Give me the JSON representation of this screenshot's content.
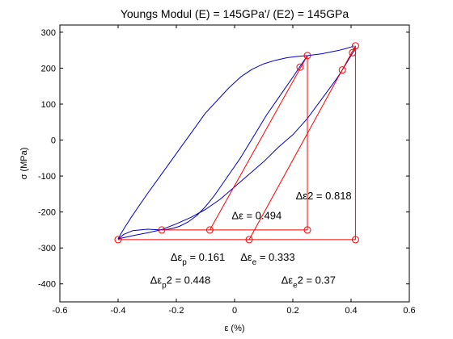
{
  "chart_data": {
    "type": "line",
    "title": "Youngs Modul (E) = 145GPa'/ (E2) = 145GPa",
    "xlabel": "ε (%)",
    "ylabel": "σ (MPa)",
    "xlim": [
      -0.6,
      0.6
    ],
    "ylim": [
      -450,
      320
    ],
    "xticks": [
      -0.6,
      -0.4,
      -0.2,
      0,
      0.2,
      0.4,
      0.6
    ],
    "xtick_labels": [
      "-0.6",
      "-0.4",
      "-0.2",
      "0",
      "0.2",
      "0.4",
      "0.6"
    ],
    "yticks": [
      -400,
      -300,
      -200,
      -100,
      0,
      100,
      200,
      300
    ],
    "ytick_labels": [
      "-400",
      "-300",
      "-200",
      "-100",
      "0",
      "100",
      "200",
      "300"
    ],
    "grid": false,
    "colors": {
      "data": "#0000c8",
      "construction": "#ff0000",
      "axes": "#000000"
    },
    "series": [
      {
        "style": "curve",
        "color": "#0000c8",
        "points": [
          [
            -0.4,
            -275
          ],
          [
            -0.39,
            -260
          ],
          [
            -0.375,
            -240
          ],
          [
            -0.355,
            -215
          ],
          [
            -0.33,
            -185
          ],
          [
            -0.3,
            -150
          ],
          [
            -0.26,
            -105
          ],
          [
            -0.22,
            -60
          ],
          [
            -0.18,
            -15
          ],
          [
            -0.14,
            30
          ],
          [
            -0.1,
            75
          ],
          [
            -0.06,
            110
          ],
          [
            -0.02,
            145
          ],
          [
            0.02,
            175
          ],
          [
            0.06,
            197
          ],
          [
            0.1,
            212
          ],
          [
            0.14,
            222
          ],
          [
            0.18,
            229
          ],
          [
            0.22,
            233
          ],
          [
            0.25,
            235
          ],
          [
            0.27,
            237
          ],
          [
            0.3,
            240
          ],
          [
            0.33,
            245
          ],
          [
            0.36,
            250
          ],
          [
            0.38,
            254
          ],
          [
            0.4,
            259
          ],
          [
            0.41,
            262
          ]
        ]
      },
      {
        "style": "curve",
        "color": "#0000c8",
        "points": [
          [
            0.25,
            235
          ],
          [
            0.225,
            205
          ],
          [
            0.2,
            175
          ],
          [
            0.17,
            140
          ],
          [
            0.14,
            105
          ],
          [
            0.11,
            70
          ],
          [
            0.08,
            30
          ],
          [
            0.05,
            -10
          ],
          [
            0.02,
            -50
          ],
          [
            -0.01,
            -85
          ],
          [
            -0.04,
            -120
          ],
          [
            -0.07,
            -155
          ],
          [
            -0.1,
            -185
          ],
          [
            -0.13,
            -210
          ],
          [
            -0.16,
            -228
          ],
          [
            -0.19,
            -240
          ],
          [
            -0.215,
            -246
          ],
          [
            -0.235,
            -249
          ],
          [
            -0.25,
            -250
          ]
        ]
      },
      {
        "style": "curve",
        "color": "#0000c8",
        "points": [
          [
            -0.25,
            -250
          ],
          [
            -0.3,
            -248
          ],
          [
            -0.35,
            -252
          ],
          [
            -0.38,
            -262
          ],
          [
            -0.4,
            -275
          ],
          [
            -0.35,
            -266
          ],
          [
            -0.3,
            -258
          ],
          [
            -0.25,
            -249
          ],
          [
            -0.2,
            -233
          ],
          [
            -0.15,
            -215
          ],
          [
            -0.1,
            -193
          ],
          [
            -0.05,
            -165
          ],
          [
            0,
            -130
          ],
          [
            0.05,
            -95
          ],
          [
            0.1,
            -60
          ],
          [
            0.15,
            -20
          ],
          [
            0.2,
            15
          ],
          [
            0.25,
            60
          ],
          [
            0.3,
            115
          ],
          [
            0.35,
            170
          ],
          [
            0.37,
            195
          ],
          [
            0.39,
            222
          ],
          [
            0.41,
            248
          ],
          [
            0.415,
            259
          ]
        ]
      },
      {
        "style": "line",
        "color": "#ff0000",
        "points": [
          [
            -0.4,
            -277
          ],
          [
            0.415,
            -277
          ],
          [
            0.415,
            262
          ]
        ]
      },
      {
        "style": "line",
        "color": "#ff0000",
        "points": [
          [
            -0.25,
            -250
          ],
          [
            0.25,
            -250
          ],
          [
            0.25,
            235
          ]
        ]
      },
      {
        "style": "line",
        "color": "#ff0000",
        "points": [
          [
            -0.085,
            -250
          ],
          [
            0.25,
            235
          ]
        ]
      },
      {
        "style": "line",
        "color": "#ff0000",
        "points": [
          [
            0.05,
            -277
          ],
          [
            0.415,
            262
          ]
        ]
      },
      {
        "style": "markers",
        "color": "#ff0000",
        "points": [
          [
            -0.4,
            -277
          ],
          [
            -0.25,
            -250
          ],
          [
            -0.085,
            -250
          ],
          [
            0.05,
            -277
          ],
          [
            0.25,
            -250
          ],
          [
            0.415,
            -277
          ],
          [
            0.25,
            235
          ],
          [
            0.415,
            262
          ],
          [
            0.225,
            203
          ],
          [
            0.37,
            195
          ],
          [
            0.405,
            243
          ]
        ]
      }
    ],
    "annotations": [
      {
        "id": "d-eps",
        "text": "Δε = 0.494",
        "x": -0.01,
        "y": -220
      },
      {
        "id": "d-eps2",
        "text": "Δε2 = 0.818",
        "x": 0.21,
        "y": -165
      },
      {
        "id": "d-eps-p-prefix",
        "text": "Δε",
        "x": -0.22,
        "y": -335,
        "sub": "p",
        "suffix": " = 0.161"
      },
      {
        "id": "d-eps-e-prefix",
        "text": "Δε",
        "x": 0.02,
        "y": -335,
        "sub": "e",
        "suffix": " = 0.333"
      },
      {
        "id": "d-eps-p2",
        "text": "Δε",
        "x": -0.29,
        "y": -400,
        "sub": "p",
        "suffix": "2 = 0.448"
      },
      {
        "id": "d-eps-e2",
        "text": "Δε",
        "x": 0.16,
        "y": -400,
        "sub": "e",
        "suffix": "2 = 0.37"
      }
    ]
  }
}
